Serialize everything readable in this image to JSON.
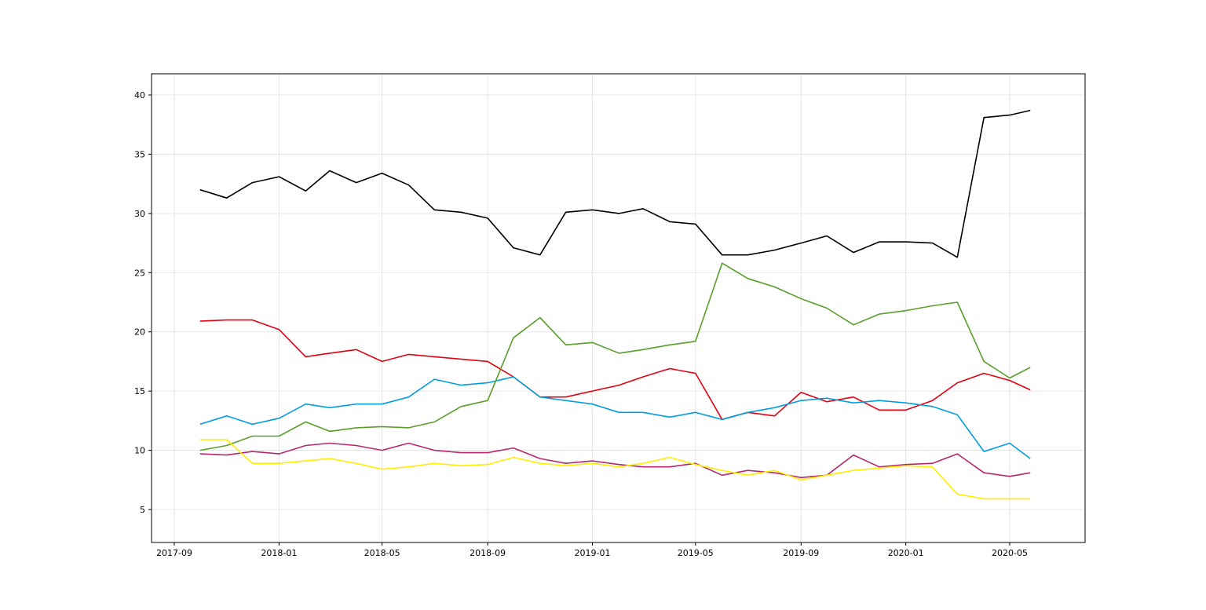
{
  "chart_data": {
    "type": "line",
    "title": "",
    "xlabel": "",
    "ylabel": "",
    "grid": true,
    "xlim": [
      "2017-08-15",
      "2020-07-01"
    ],
    "ylim": [
      2.3,
      41.8
    ],
    "x_ticks": [
      "2017-09",
      "2018-01",
      "2018-05",
      "2018-09",
      "2019-01",
      "2019-05",
      "2019-09",
      "2020-01",
      "2020-05"
    ],
    "y_ticks": [
      5,
      10,
      15,
      20,
      25,
      30,
      35,
      40
    ],
    "x": [
      "2017-10-01",
      "2017-11-01",
      "2017-12-01",
      "2018-01-01",
      "2018-02-01",
      "2018-03-01",
      "2018-04-01",
      "2018-05-01",
      "2018-06-01",
      "2018-07-01",
      "2018-08-01",
      "2018-09-01",
      "2018-10-01",
      "2018-11-01",
      "2018-12-01",
      "2019-01-01",
      "2019-02-01",
      "2019-03-01",
      "2019-04-01",
      "2019-05-01",
      "2019-06-01",
      "2019-07-01",
      "2019-08-01",
      "2019-09-01",
      "2019-10-01",
      "2019-11-01",
      "2019-12-01",
      "2020-01-01",
      "2020-02-01",
      "2020-03-01",
      "2020-04-01",
      "2020-05-01",
      "2020-05-25"
    ],
    "series": [
      {
        "color": "#000000",
        "values": [
          32.0,
          31.3,
          32.6,
          33.1,
          31.9,
          33.6,
          32.6,
          33.4,
          32.4,
          30.3,
          30.1,
          29.6,
          27.1,
          26.5,
          30.1,
          30.3,
          30.0,
          30.4,
          29.3,
          29.1,
          26.5,
          26.5,
          26.9,
          27.5,
          28.1,
          26.7,
          27.6,
          27.6,
          27.5,
          26.3,
          38.1,
          38.3,
          38.7
        ]
      },
      {
        "color": "#e3000f",
        "values": [
          20.9,
          21.0,
          21.0,
          20.2,
          17.9,
          18.2,
          18.5,
          17.5,
          18.1,
          17.9,
          17.7,
          17.5,
          16.2,
          14.5,
          14.5,
          15.0,
          15.5,
          16.2,
          16.9,
          16.5,
          12.6,
          13.2,
          12.9,
          14.9,
          14.1,
          14.5,
          13.4,
          13.4,
          14.2,
          15.7,
          16.5,
          15.9,
          15.1
        ]
      },
      {
        "color": "#009ee0",
        "values": [
          12.2,
          12.9,
          12.2,
          12.7,
          13.9,
          13.6,
          13.9,
          13.9,
          14.5,
          16.0,
          15.5,
          15.7,
          16.2,
          14.5,
          14.2,
          13.9,
          13.2,
          13.2,
          12.8,
          13.2,
          12.6,
          13.2,
          13.6,
          14.2,
          14.4,
          14.0,
          14.2,
          14.0,
          13.7,
          13.0,
          9.9,
          10.6,
          9.3
        ]
      },
      {
        "color": "#5a9e2a",
        "values": [
          10.0,
          10.4,
          11.2,
          11.2,
          12.4,
          11.6,
          11.9,
          12.0,
          11.9,
          12.4,
          13.7,
          14.2,
          19.5,
          21.2,
          18.9,
          19.1,
          18.2,
          18.5,
          18.9,
          19.2,
          25.8,
          24.5,
          23.8,
          22.8,
          22.0,
          20.6,
          21.5,
          21.8,
          22.2,
          22.5,
          17.5,
          16.1,
          17.0
        ]
      },
      {
        "color": "#b5276f",
        "values": [
          9.7,
          9.6,
          9.9,
          9.7,
          10.4,
          10.6,
          10.4,
          10.0,
          10.6,
          10.0,
          9.8,
          9.8,
          10.2,
          9.3,
          8.9,
          9.1,
          8.8,
          8.6,
          8.6,
          8.9,
          7.9,
          8.3,
          8.1,
          7.7,
          7.9,
          9.6,
          8.6,
          8.8,
          8.9,
          9.7,
          8.1,
          7.8,
          8.1
        ]
      },
      {
        "color": "#ffed00",
        "values": [
          10.9,
          10.9,
          8.9,
          8.9,
          9.1,
          9.3,
          8.9,
          8.4,
          8.6,
          8.9,
          8.7,
          8.8,
          9.4,
          8.9,
          8.7,
          8.9,
          8.6,
          8.9,
          9.4,
          8.8,
          8.3,
          7.9,
          8.3,
          7.5,
          7.9,
          8.3,
          8.5,
          8.7,
          8.6,
          6.3,
          5.9,
          5.9,
          5.9
        ]
      }
    ]
  }
}
